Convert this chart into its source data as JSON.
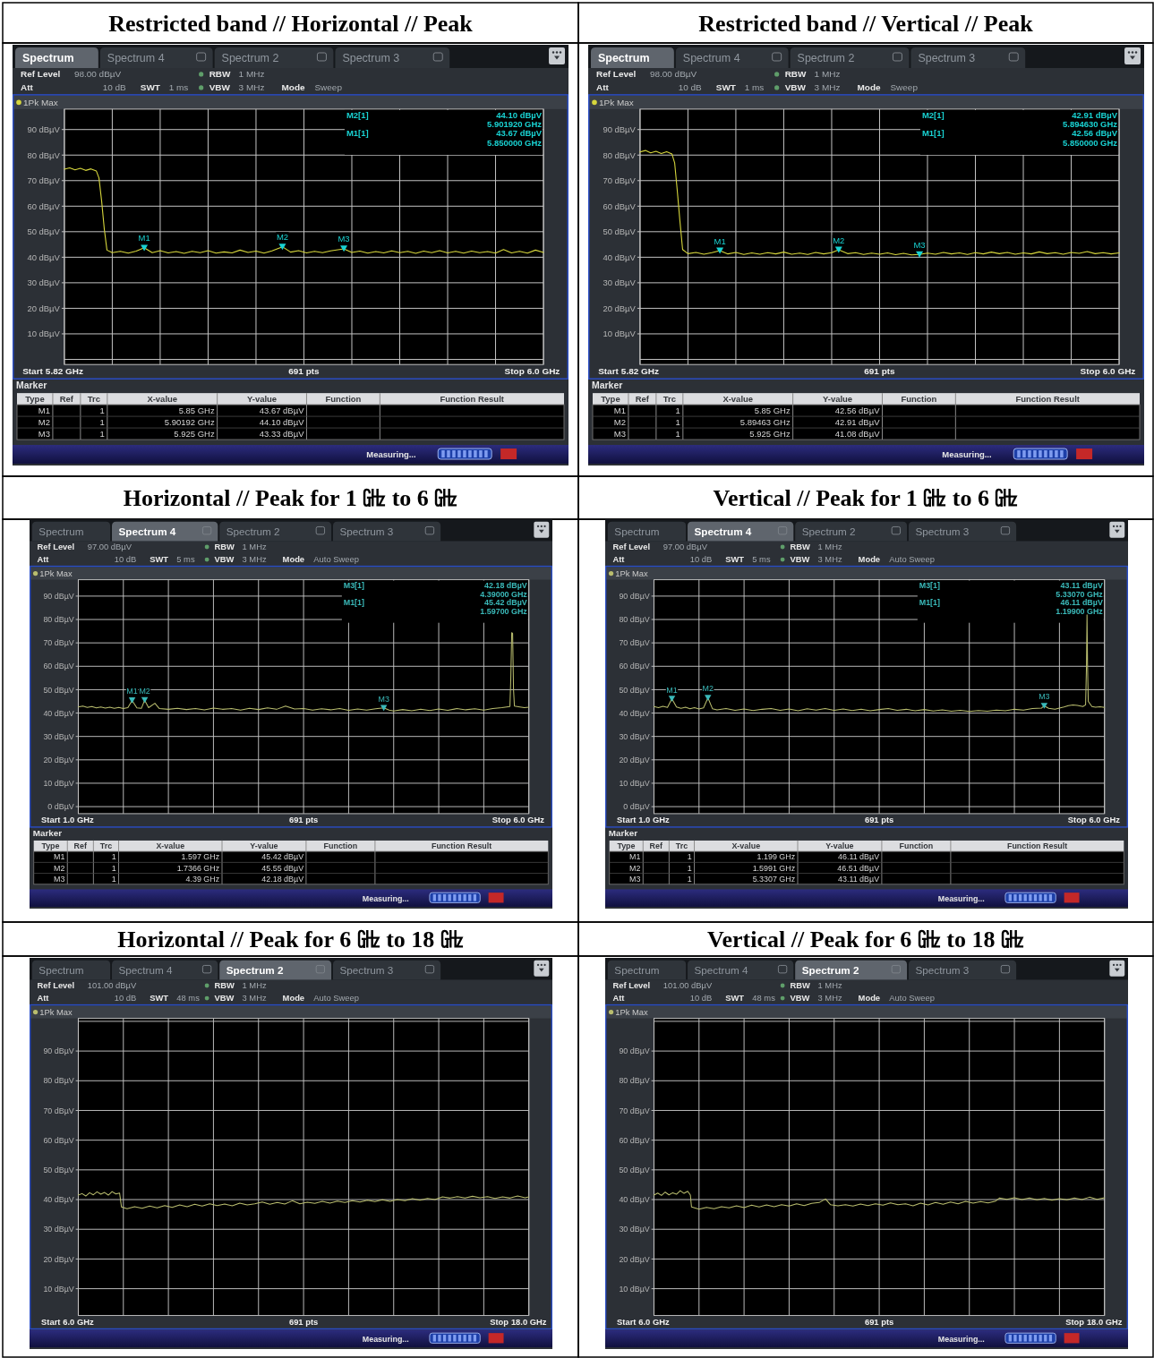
{
  "chart_data": [
    {
      "type": "line",
      "title": "Restricted band // Horizontal // Peak",
      "xlabel": "691 pts",
      "xlim": [
        5.82,
        6.0
      ],
      "xticks": [
        {
          "value": 5.82,
          "label": "5.82 GHz"
        },
        {
          "value": 5.838,
          "label": null
        },
        {
          "value": 5.856,
          "label": null
        },
        {
          "value": 5.874,
          "label": null
        },
        {
          "value": 5.892,
          "label": null
        },
        {
          "value": 5.91,
          "label": null
        },
        {
          "value": 5.928,
          "label": null
        },
        {
          "value": 5.946,
          "label": null
        },
        {
          "value": 5.964,
          "label": null
        },
        {
          "value": 5.982,
          "label": null
        },
        {
          "value": 6.0,
          "label": "6.0 GHz"
        }
      ],
      "ylim": [
        -2,
        98
      ],
      "yticks": [
        {
          "value": 90,
          "label": "90 dBµV"
        },
        {
          "value": 80,
          "label": "80 dBµV"
        },
        {
          "value": 70,
          "label": "70 dBµV"
        },
        {
          "value": 60,
          "label": "60 dBµV"
        },
        {
          "value": 50,
          "label": "50 dBµV"
        },
        {
          "value": 40,
          "label": "40 dBµV"
        },
        {
          "value": 30,
          "label": "30 dBµV"
        },
        {
          "value": 20,
          "label": "20 dBµV"
        },
        {
          "value": 10,
          "label": "10 dBµV"
        },
        {
          "value": 0,
          "label": null
        }
      ],
      "grid": true,
      "legend": "top left",
      "series": [
        {
          "name": "1Pk Max",
          "color": "#d6d63c",
          "x": [
            5.82,
            5.822,
            5.824,
            5.826,
            5.828,
            5.83,
            5.832,
            5.833,
            5.834,
            5.835,
            5.836,
            5.838,
            5.841,
            5.844,
            5.847,
            5.85,
            5.853,
            5.856,
            5.859,
            5.862,
            5.865,
            5.868,
            5.871,
            5.874,
            5.877,
            5.88,
            5.883,
            5.886,
            5.889,
            5.892,
            5.895,
            5.898,
            5.90192,
            5.905,
            5.908,
            5.911,
            5.914,
            5.917,
            5.92,
            5.925,
            5.928,
            5.931,
            5.934,
            5.937,
            5.94,
            5.943,
            5.946,
            5.949,
            5.952,
            5.955,
            5.958,
            5.961,
            5.964,
            5.967,
            5.97,
            5.973,
            5.976,
            5.979,
            5.982,
            5.985,
            5.988,
            5.991,
            5.994,
            5.997,
            6.0
          ],
          "values": [
            74.5,
            75.0,
            74.2,
            74.8,
            74.0,
            74.6,
            73.8,
            71.0,
            62.0,
            51.0,
            42.8,
            41.8,
            42.3,
            41.6,
            42.4,
            43.7,
            41.8,
            42.6,
            41.7,
            42.2,
            41.5,
            42.3,
            41.8,
            42.6,
            41.6,
            42.1,
            41.7,
            42.8,
            41.9,
            42.4,
            41.6,
            42.5,
            44.1,
            42.0,
            42.6,
            41.7,
            42.3,
            41.8,
            42.5,
            43.3,
            41.9,
            42.4,
            41.6,
            42.2,
            41.7,
            42.5,
            41.8,
            42.3,
            41.5,
            42.4,
            41.8,
            42.6,
            41.7,
            42.3,
            41.6,
            42.4,
            41.8,
            42.2,
            41.6,
            43.0,
            41.7,
            42.3,
            41.6,
            42.8,
            41.9
          ]
        },
        {
          "type": "scatter",
          "marker": "triangle",
          "color": "#19d2d2",
          "x": [
            5.85,
            5.90192,
            5.925
          ],
          "values": [
            43.67,
            44.1,
            43.33
          ]
        }
      ],
      "annotations": [
        "Spectrum",
        "Spectrum 4",
        "Spectrum 2",
        "Spectrum 3",
        "Ref Level",
        "98.00 dBµV",
        "Att",
        "10 dB",
        "SWT",
        "1 ms",
        "RBW",
        "1 MHz",
        "VBW",
        "3 MHz",
        "Mode",
        "Sweep",
        "Start",
        "Stop",
        "Measuring...",
        "M2[1]",
        "44.10 dBµV",
        "5.901920 GHz",
        "M1[1]",
        "43.67 dBµV",
        "5.850000 GHz",
        {
          "text": "M1",
          "x": 5.85,
          "y": 43.67
        },
        {
          "text": "M2",
          "x": 5.90192,
          "y": 44.1
        },
        {
          "text": "M3",
          "x": 5.925,
          "y": 43.33
        }
      ]
    },
    {
      "type": "other",
      "title": "Marker",
      "annotations": [
        "Type",
        "Ref",
        "Trc",
        "X-value",
        "Y-value",
        "Function",
        "Function Result",
        "M1",
        "1",
        "5.85 GHz",
        "43.67 dBµV",
        "M2",
        "1",
        "5.90192 GHz",
        "44.10 dBµV",
        "M3",
        "1",
        "5.925 GHz",
        "43.33 dBµV"
      ]
    },
    {
      "type": "line",
      "title": "Restricted band // Vertical // Peak",
      "xlabel": "691 pts",
      "xlim": [
        5.82,
        6.0
      ],
      "xticks": [
        {
          "value": 5.82,
          "label": "5.82 GHz"
        },
        {
          "value": 5.838,
          "label": null
        },
        {
          "value": 5.856,
          "label": null
        },
        {
          "value": 5.874,
          "label": null
        },
        {
          "value": 5.892,
          "label": null
        },
        {
          "value": 5.91,
          "label": null
        },
        {
          "value": 5.928,
          "label": null
        },
        {
          "value": 5.946,
          "label": null
        },
        {
          "value": 5.964,
          "label": null
        },
        {
          "value": 5.982,
          "label": null
        },
        {
          "value": 6.0,
          "label": "6.0 GHz"
        }
      ],
      "ylim": [
        -2,
        98
      ],
      "yticks": [
        {
          "value": 90,
          "label": "90 dBµV"
        },
        {
          "value": 80,
          "label": "80 dBµV"
        },
        {
          "value": 70,
          "label": "70 dBµV"
        },
        {
          "value": 60,
          "label": "60 dBµV"
        },
        {
          "value": 50,
          "label": "50 dBµV"
        },
        {
          "value": 40,
          "label": "40 dBµV"
        },
        {
          "value": 30,
          "label": "30 dBµV"
        },
        {
          "value": 20,
          "label": "20 dBµV"
        },
        {
          "value": 10,
          "label": "10 dBµV"
        },
        {
          "value": 0,
          "label": null
        }
      ],
      "grid": true,
      "legend": "top left",
      "series": [
        {
          "name": "1Pk Max",
          "color": "#d6d63c",
          "x": [
            5.82,
            5.822,
            5.824,
            5.826,
            5.828,
            5.83,
            5.832,
            5.833,
            5.834,
            5.835,
            5.836,
            5.838,
            5.841,
            5.844,
            5.847,
            5.85,
            5.853,
            5.856,
            5.859,
            5.862,
            5.865,
            5.868,
            5.871,
            5.874,
            5.877,
            5.88,
            5.883,
            5.886,
            5.889,
            5.892,
            5.89463,
            5.898,
            5.901,
            5.904,
            5.907,
            5.91,
            5.913,
            5.916,
            5.919,
            5.922,
            5.925,
            5.928,
            5.931,
            5.934,
            5.937,
            5.94,
            5.943,
            5.946,
            5.949,
            5.952,
            5.955,
            5.958,
            5.961,
            5.964,
            5.967,
            5.97,
            5.973,
            5.976,
            5.979,
            5.982,
            5.985,
            5.988,
            5.991,
            5.994,
            5.997,
            6.0
          ],
          "values": [
            81.2,
            81.8,
            80.9,
            81.5,
            80.6,
            81.3,
            80.4,
            77.0,
            66.0,
            54.0,
            43.0,
            41.4,
            41.9,
            41.2,
            41.8,
            42.6,
            41.3,
            41.9,
            41.1,
            41.7,
            41.2,
            41.8,
            41.3,
            42.0,
            41.2,
            41.6,
            41.1,
            41.9,
            41.3,
            41.8,
            42.9,
            41.4,
            41.8,
            41.1,
            41.6,
            41.2,
            41.7,
            41.0,
            41.5,
            40.9,
            41.1,
            41.6,
            41.2,
            41.9,
            41.3,
            41.7,
            41.1,
            41.8,
            41.3,
            42.0,
            41.4,
            41.9,
            41.2,
            41.7,
            41.3,
            42.1,
            41.4,
            41.8,
            41.2,
            41.9,
            41.5,
            42.2,
            41.4,
            41.8,
            41.3,
            41.7
          ]
        },
        {
          "type": "scatter",
          "marker": "triangle",
          "color": "#19d2d2",
          "x": [
            5.85,
            5.89463,
            5.925
          ],
          "values": [
            42.56,
            42.91,
            41.08
          ]
        }
      ],
      "annotations": [
        "Spectrum",
        "Spectrum 4",
        "Spectrum 2",
        "Spectrum 3",
        "Ref Level",
        "98.00 dBµV",
        "Att",
        "10 dB",
        "SWT",
        "1 ms",
        "RBW",
        "1 MHz",
        "VBW",
        "3 MHz",
        "Mode",
        "Sweep",
        "Start",
        "Stop",
        "Measuring...",
        "M2[1]",
        "42.91 dBµV",
        "5.894630 GHz",
        "M1[1]",
        "42.56 dBµV",
        "5.850000 GHz",
        {
          "text": "M1",
          "x": 5.85,
          "y": 42.56
        },
        {
          "text": "M2",
          "x": 5.89463,
          "y": 42.91
        },
        {
          "text": "M3",
          "x": 5.925,
          "y": 41.08
        }
      ]
    },
    {
      "type": "other",
      "title": "Marker",
      "annotations": [
        "Type",
        "Ref",
        "Trc",
        "X-value",
        "Y-value",
        "Function",
        "Function Result",
        "M1",
        "1",
        "5.85 GHz",
        "42.56 dBµV",
        "M2",
        "1",
        "5.89463 GHz",
        "42.91 dBµV",
        "M3",
        "1",
        "5.925 GHz",
        "41.08 dBµV"
      ]
    },
    {
      "type": "line",
      "title": "Horizontal // Peak for 1 ㎓ to 6 ㎓",
      "xlabel": "691 pts",
      "xlim": [
        1.0,
        6.0
      ],
      "xticks": [
        {
          "value": 1.0,
          "label": "1.0 GHz"
        },
        {
          "value": 1.5,
          "label": null
        },
        {
          "value": 2.0,
          "label": null
        },
        {
          "value": 2.5,
          "label": null
        },
        {
          "value": 3.0,
          "label": null
        },
        {
          "value": 3.5,
          "label": null
        },
        {
          "value": 4.0,
          "label": null
        },
        {
          "value": 4.5,
          "label": null
        },
        {
          "value": 5.0,
          "label": null
        },
        {
          "value": 5.5,
          "label": null
        },
        {
          "value": 6.0,
          "label": "6.0 GHz"
        }
      ],
      "ylim": [
        -3,
        97
      ],
      "yticks": [
        {
          "value": 90,
          "label": "90 dBµV"
        },
        {
          "value": 80,
          "label": "80 dBµV"
        },
        {
          "value": 70,
          "label": "70 dBµV"
        },
        {
          "value": 60,
          "label": "60 dBµV"
        },
        {
          "value": 50,
          "label": "50 dBµV"
        },
        {
          "value": 40,
          "label": "40 dBµV"
        },
        {
          "value": 30,
          "label": "30 dBµV"
        },
        {
          "value": 20,
          "label": "20 dBµV"
        },
        {
          "value": 10,
          "label": "10 dBµV"
        },
        {
          "value": 0,
          "label": "0 dBµV"
        }
      ],
      "grid": true,
      "legend": "top left",
      "series": [
        {
          "name": "1Pk Max",
          "color": "#b9bd6e",
          "x": [
            1.0,
            1.05,
            1.1,
            1.15,
            1.2,
            1.25,
            1.3,
            1.35,
            1.4,
            1.45,
            1.5,
            1.55,
            1.597,
            1.65,
            1.7,
            1.7366,
            1.78,
            1.85,
            1.9,
            2.0,
            2.1,
            2.2,
            2.3,
            2.4,
            2.5,
            2.6,
            2.7,
            2.8,
            2.9,
            3.0,
            3.1,
            3.2,
            3.3,
            3.4,
            3.5,
            3.6,
            3.7,
            3.8,
            3.9,
            4.0,
            4.1,
            4.2,
            4.3,
            4.39,
            4.45,
            4.5,
            4.6,
            4.7,
            4.8,
            4.9,
            5.0,
            5.1,
            5.2,
            5.3,
            5.4,
            5.5,
            5.6,
            5.7,
            5.79,
            5.8,
            5.81,
            5.82,
            5.83,
            5.84,
            5.9,
            5.95,
            6.0
          ],
          "values": [
            42.6,
            43.0,
            42.4,
            42.8,
            42.2,
            42.6,
            42.1,
            42.5,
            42.0,
            42.4,
            41.9,
            42.3,
            45.4,
            42.2,
            42.0,
            45.5,
            42.3,
            44.2,
            41.9,
            41.6,
            42.0,
            41.5,
            41.9,
            41.4,
            42.1,
            41.6,
            41.9,
            41.3,
            42.0,
            41.5,
            42.2,
            41.6,
            43.0,
            41.7,
            41.9,
            41.3,
            41.8,
            41.4,
            41.9,
            41.2,
            41.7,
            41.3,
            41.8,
            42.2,
            41.3,
            40.9,
            41.5,
            41.0,
            41.6,
            41.1,
            41.7,
            41.2,
            41.9,
            41.4,
            41.8,
            41.3,
            41.9,
            42.3,
            42.8,
            55.0,
            74.4,
            74.0,
            50.0,
            43.0,
            42.6,
            42.3,
            42.5
          ]
        },
        {
          "type": "scatter",
          "marker": "triangle",
          "color": "#3ab9b9",
          "x": [
            1.597,
            1.7366,
            4.39
          ],
          "values": [
            45.42,
            45.55,
            42.18
          ]
        }
      ],
      "annotations": [
        "Spectrum",
        "Spectrum 4",
        "Spectrum 2",
        "Spectrum 3",
        "Ref Level",
        "97.00 dBµV",
        "Att",
        "10 dB",
        "SWT",
        "5 ms",
        "RBW",
        "1 MHz",
        "VBW",
        "3 MHz",
        "Mode",
        "Auto Sweep",
        "Start",
        "Stop",
        "Measuring...",
        "M3[1]",
        "42.18 dBµV",
        "4.39000 GHz",
        "M1[1]",
        "45.42 dBµV",
        "1.59700 GHz",
        {
          "text": "M1",
          "x": 1.597,
          "y": 45.42
        },
        {
          "text": "M2",
          "x": 1.7366,
          "y": 45.55
        },
        {
          "text": "M3",
          "x": 4.39,
          "y": 42.18
        }
      ]
    },
    {
      "type": "other",
      "title": "Marker",
      "annotations": [
        "Type",
        "Ref",
        "Trc",
        "X-value",
        "Y-value",
        "Function",
        "Function Result",
        "M1",
        "1",
        "1.597 GHz",
        "45.42 dBµV",
        "M2",
        "1",
        "1.7366 GHz",
        "45.55 dBµV",
        "M3",
        "1",
        "4.39 GHz",
        "42.18 dBµV"
      ]
    },
    {
      "type": "line",
      "title": "Vertical // Peak for 1 ㎓ to 6 ㎓",
      "xlabel": "691 pts",
      "xlim": [
        1.0,
        6.0
      ],
      "xticks": [
        {
          "value": 1.0,
          "label": "1.0 GHz"
        },
        {
          "value": 1.5,
          "label": null
        },
        {
          "value": 2.0,
          "label": null
        },
        {
          "value": 2.5,
          "label": null
        },
        {
          "value": 3.0,
          "label": null
        },
        {
          "value": 3.5,
          "label": null
        },
        {
          "value": 4.0,
          "label": null
        },
        {
          "value": 4.5,
          "label": null
        },
        {
          "value": 5.0,
          "label": null
        },
        {
          "value": 5.5,
          "label": null
        },
        {
          "value": 6.0,
          "label": "6.0 GHz"
        }
      ],
      "ylim": [
        -3,
        97
      ],
      "yticks": [
        {
          "value": 90,
          "label": "90 dBµV"
        },
        {
          "value": 80,
          "label": "80 dBµV"
        },
        {
          "value": 70,
          "label": "70 dBµV"
        },
        {
          "value": 60,
          "label": "60 dBµV"
        },
        {
          "value": 50,
          "label": "50 dBµV"
        },
        {
          "value": 40,
          "label": "40 dBµV"
        },
        {
          "value": 30,
          "label": "30 dBµV"
        },
        {
          "value": 20,
          "label": "20 dBµV"
        },
        {
          "value": 10,
          "label": "10 dBµV"
        },
        {
          "value": 0,
          "label": "0 dBµV"
        }
      ],
      "grid": true,
      "legend": "top left",
      "series": [
        {
          "name": "1Pk Max",
          "color": "#b9bd6e",
          "x": [
            1.0,
            1.05,
            1.1,
            1.15,
            1.199,
            1.25,
            1.3,
            1.35,
            1.4,
            1.45,
            1.5,
            1.55,
            1.5991,
            1.65,
            1.7,
            1.8,
            1.9,
            2.0,
            2.1,
            2.2,
            2.3,
            2.4,
            2.5,
            2.6,
            2.7,
            2.8,
            2.9,
            3.0,
            3.1,
            3.2,
            3.3,
            3.4,
            3.5,
            3.6,
            3.7,
            3.8,
            3.9,
            4.0,
            4.1,
            4.2,
            4.3,
            4.4,
            4.5,
            4.6,
            4.7,
            4.8,
            4.9,
            5.0,
            5.1,
            5.2,
            5.3,
            5.3307,
            5.38,
            5.45,
            5.5,
            5.55,
            5.6,
            5.65,
            5.7,
            5.76,
            5.79,
            5.8,
            5.806,
            5.812,
            5.82,
            5.86,
            5.9,
            5.95,
            6.0
          ],
          "values": [
            42.8,
            42.3,
            42.9,
            42.4,
            46.1,
            42.6,
            42.0,
            42.5,
            41.8,
            42.3,
            41.7,
            42.2,
            46.5,
            41.8,
            41.4,
            41.9,
            41.2,
            41.7,
            41.1,
            41.6,
            41.9,
            41.2,
            41.7,
            41.0,
            41.8,
            41.3,
            41.9,
            41.2,
            41.7,
            41.1,
            41.6,
            41.0,
            41.5,
            41.9,
            41.2,
            41.6,
            41.0,
            41.5,
            40.9,
            41.4,
            40.8,
            41.2,
            40.7,
            41.1,
            40.8,
            41.3,
            41.0,
            41.6,
            41.3,
            41.9,
            42.1,
            43.1,
            42.0,
            41.6,
            42.1,
            42.6,
            43.2,
            43.5,
            43.3,
            42.8,
            43.5,
            60.0,
            82.0,
            60.0,
            45.0,
            42.8,
            42.5,
            42.7,
            42.4
          ]
        },
        {
          "type": "scatter",
          "marker": "triangle",
          "color": "#3ab9b9",
          "x": [
            1.199,
            1.5991,
            5.3307
          ],
          "values": [
            46.11,
            46.51,
            43.11
          ]
        }
      ],
      "annotations": [
        "Spectrum",
        "Spectrum 4",
        "Spectrum 2",
        "Spectrum 3",
        "Ref Level",
        "97.00 dBµV",
        "Att",
        "10 dB",
        "SWT",
        "5 ms",
        "RBW",
        "1 MHz",
        "VBW",
        "3 MHz",
        "Mode",
        "Auto Sweep",
        "Start",
        "Stop",
        "Measuring...",
        "M3[1]",
        "43.11 dBµV",
        "5.33070 GHz",
        "M1[1]",
        "46.11 dBµV",
        "1.19900 GHz",
        {
          "text": "M1",
          "x": 1.199,
          "y": 46.11
        },
        {
          "text": "M2",
          "x": 1.5991,
          "y": 46.51
        },
        {
          "text": "M3",
          "x": 5.3307,
          "y": 43.11
        }
      ]
    },
    {
      "type": "other",
      "title": "Marker",
      "annotations": [
        "Type",
        "Ref",
        "Trc",
        "X-value",
        "Y-value",
        "Function",
        "Function Result",
        "M1",
        "1",
        "1.199 GHz",
        "46.11 dBµV",
        "M2",
        "1",
        "1.5991 GHz",
        "46.51 dBµV",
        "M3",
        "1",
        "5.3307 GHz",
        "43.11 dBµV"
      ]
    },
    {
      "type": "line",
      "title": "Horizontal // Peak for 6 ㎓ to 18 ㎓",
      "xlabel": "691 pts",
      "xlim": [
        6.0,
        18.0
      ],
      "xticks": [
        {
          "value": 6.0,
          "label": "6.0 GHz"
        },
        {
          "value": 7.2,
          "label": null
        },
        {
          "value": 8.4,
          "label": null
        },
        {
          "value": 9.6,
          "label": null
        },
        {
          "value": 10.8,
          "label": null
        },
        {
          "value": 12.0,
          "label": null
        },
        {
          "value": 13.2,
          "label": null
        },
        {
          "value": 14.4,
          "label": null
        },
        {
          "value": 15.6,
          "label": null
        },
        {
          "value": 16.8,
          "label": null
        },
        {
          "value": 18.0,
          "label": "18.0 GHz"
        }
      ],
      "ylim": [
        1,
        101
      ],
      "yticks": [
        {
          "value": 100,
          "label": null
        },
        {
          "value": 90,
          "label": "90 dBµV"
        },
        {
          "value": 80,
          "label": "80 dBµV"
        },
        {
          "value": 70,
          "label": "70 dBµV"
        },
        {
          "value": 60,
          "label": "60 dBµV"
        },
        {
          "value": 50,
          "label": "50 dBµV"
        },
        {
          "value": 40,
          "label": "40 dBµV"
        },
        {
          "value": 30,
          "label": "30 dBµV"
        },
        {
          "value": 20,
          "label": "20 dBµV"
        },
        {
          "value": 10,
          "label": "10 dBµV"
        }
      ],
      "grid": true,
      "legend": "top left",
      "series": [
        {
          "name": "1Pk Max",
          "color": "#b9bd6e",
          "x": [
            6.0,
            6.1,
            6.2,
            6.3,
            6.4,
            6.5,
            6.6,
            6.7,
            6.8,
            6.9,
            7.0,
            7.1,
            7.15,
            7.3,
            7.5,
            7.7,
            7.9,
            8.1,
            8.3,
            8.5,
            8.7,
            8.9,
            9.1,
            9.3,
            9.5,
            9.7,
            9.9,
            10.1,
            10.3,
            10.5,
            10.7,
            10.9,
            11.1,
            11.3,
            11.5,
            11.7,
            11.9,
            12.1,
            12.3,
            12.5,
            12.7,
            12.9,
            13.1,
            13.3,
            13.5,
            13.7,
            13.9,
            14.1,
            14.3,
            14.5,
            14.7,
            14.9,
            15.1,
            15.3,
            15.5,
            15.7,
            15.9,
            16.1,
            16.3,
            16.5,
            16.7,
            16.9,
            17.1,
            17.3,
            17.5,
            17.7,
            17.9,
            18.0
          ],
          "values": [
            41.5,
            42.0,
            41.2,
            42.3,
            41.6,
            42.6,
            41.8,
            42.4,
            41.5,
            42.7,
            41.9,
            42.2,
            37.5,
            36.9,
            37.6,
            37.1,
            37.8,
            37.2,
            38.0,
            37.4,
            38.2,
            37.6,
            38.4,
            37.8,
            38.6,
            38.0,
            38.5,
            37.9,
            38.8,
            38.2,
            38.6,
            39.2,
            38.4,
            39.0,
            38.5,
            39.6,
            38.6,
            39.1,
            38.7,
            39.4,
            38.8,
            39.5,
            39.0,
            39.6,
            39.2,
            39.8,
            39.3,
            39.9,
            39.4,
            40.0,
            39.6,
            40.3,
            39.8,
            40.4,
            40.0,
            40.9,
            40.5,
            41.0,
            40.5,
            41.1,
            40.6,
            41.0,
            40.4,
            40.9,
            40.5,
            41.2,
            40.6,
            40.9
          ]
        }
      ],
      "annotations": [
        "Spectrum",
        "Spectrum 4",
        "Spectrum 2",
        "Spectrum 3",
        "Ref Level",
        "101.00 dBµV",
        "Att",
        "10 dB",
        "SWT",
        "48 ms",
        "RBW",
        "1 MHz",
        "VBW",
        "3 MHz",
        "Mode",
        "Auto Sweep",
        "Start",
        "Stop",
        "Measuring..."
      ]
    },
    {
      "type": "line",
      "title": "Vertical // Peak for 6 ㎓ to 18 ㎓",
      "xlabel": "691 pts",
      "xlim": [
        6.0,
        18.0
      ],
      "xticks": [
        {
          "value": 6.0,
          "label": "6.0 GHz"
        },
        {
          "value": 7.2,
          "label": null
        },
        {
          "value": 8.4,
          "label": null
        },
        {
          "value": 9.6,
          "label": null
        },
        {
          "value": 10.8,
          "label": null
        },
        {
          "value": 12.0,
          "label": null
        },
        {
          "value": 13.2,
          "label": null
        },
        {
          "value": 14.4,
          "label": null
        },
        {
          "value": 15.6,
          "label": null
        },
        {
          "value": 16.8,
          "label": null
        },
        {
          "value": 18.0,
          "label": "18.0 GHz"
        }
      ],
      "ylim": [
        1,
        101
      ],
      "yticks": [
        {
          "value": 100,
          "label": null
        },
        {
          "value": 90,
          "label": "90 dBµV"
        },
        {
          "value": 80,
          "label": "80 dBµV"
        },
        {
          "value": 70,
          "label": "70 dBµV"
        },
        {
          "value": 60,
          "label": "60 dBµV"
        },
        {
          "value": 50,
          "label": "50 dBµV"
        },
        {
          "value": 40,
          "label": "40 dBµV"
        },
        {
          "value": 30,
          "label": "30 dBµV"
        },
        {
          "value": 20,
          "label": "20 dBµV"
        },
        {
          "value": 10,
          "label": "10 dBµV"
        }
      ],
      "grid": true,
      "legend": "top left",
      "series": [
        {
          "name": "1Pk Max",
          "color": "#b9bd6e",
          "x": [
            6.0,
            6.1,
            6.2,
            6.3,
            6.4,
            6.5,
            6.6,
            6.7,
            6.8,
            6.9,
            6.97,
            7.0,
            7.2,
            7.4,
            7.6,
            7.8,
            8.0,
            8.2,
            8.4,
            8.6,
            8.8,
            9.0,
            9.2,
            9.4,
            9.6,
            9.8,
            10.0,
            10.2,
            10.4,
            10.57,
            10.7,
            10.9,
            11.1,
            11.3,
            11.5,
            11.7,
            11.9,
            12.1,
            12.3,
            12.5,
            12.7,
            12.9,
            13.1,
            13.3,
            13.5,
            13.7,
            13.9,
            14.1,
            14.3,
            14.5,
            14.7,
            14.9,
            15.1,
            15.2,
            15.4,
            15.6,
            15.8,
            16.0,
            16.2,
            16.4,
            16.6,
            16.8,
            17.0,
            17.2,
            17.4,
            17.6,
            17.8,
            18.0
          ],
          "values": [
            41.5,
            42.2,
            41.4,
            42.5,
            41.6,
            42.3,
            41.8,
            43.0,
            42.1,
            42.8,
            41.5,
            37.5,
            36.8,
            37.4,
            36.9,
            37.6,
            37.2,
            37.9,
            37.3,
            38.1,
            37.5,
            38.2,
            37.6,
            38.3,
            37.8,
            38.6,
            38.0,
            38.7,
            39.0,
            40.2,
            38.3,
            37.9,
            38.3,
            37.8,
            38.5,
            38.0,
            38.6,
            38.1,
            38.9,
            38.3,
            38.6,
            37.9,
            38.8,
            38.2,
            39.0,
            38.4,
            39.2,
            38.6,
            39.4,
            38.8,
            39.3,
            38.9,
            39.5,
            40.5,
            40.1,
            40.6,
            40.0,
            40.5,
            39.9,
            40.4,
            39.8,
            40.3,
            39.9,
            40.5,
            40.0,
            40.8,
            40.1,
            40.6
          ]
        }
      ],
      "annotations": [
        "Spectrum",
        "Spectrum 4",
        "Spectrum 2",
        "Spectrum 3",
        "Ref Level",
        "101.00 dBµV",
        "Att",
        "10 dB",
        "SWT",
        "48 ms",
        "RBW",
        "1 MHz",
        "VBW",
        "3 MHz",
        "Mode",
        "Auto Sweep",
        "Start",
        "Stop",
        "Measuring..."
      ]
    }
  ]
}
